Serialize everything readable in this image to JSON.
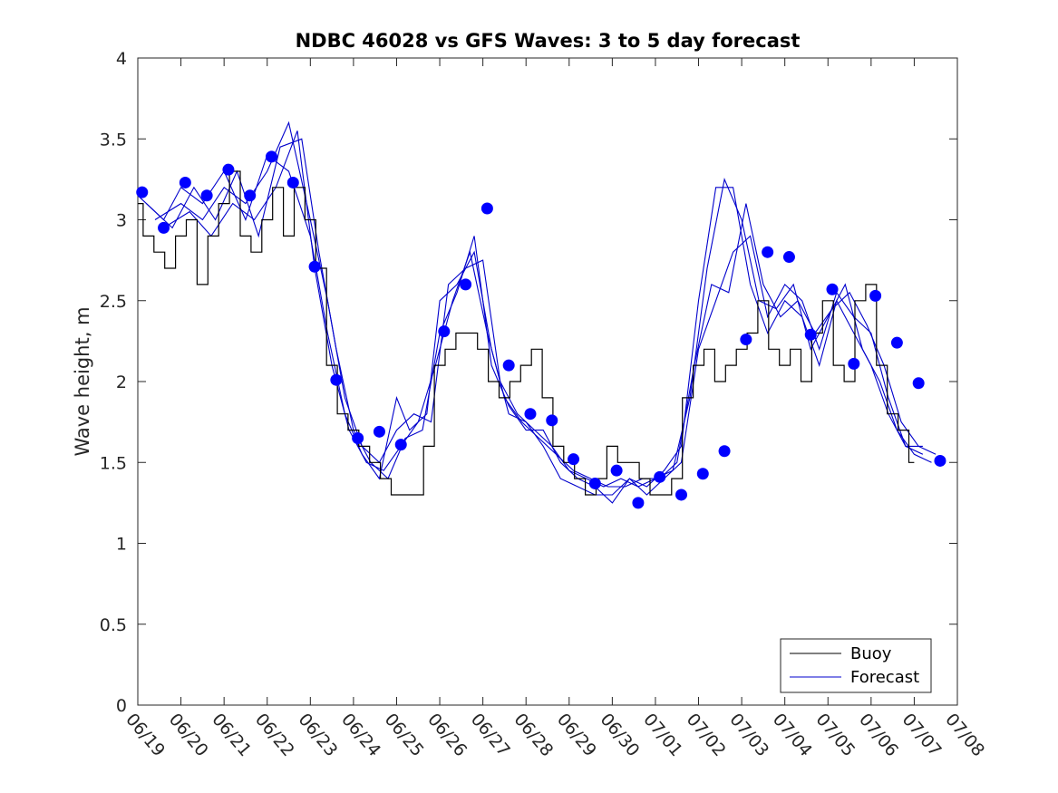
{
  "chart_data": {
    "type": "line",
    "title": "NDBC 46028 vs GFS Waves: 3 to 5 day forecast",
    "xlabel": "",
    "ylabel": "Wave height, m",
    "x_tick_labels": [
      "06/19",
      "06/20",
      "06/21",
      "06/22",
      "06/23",
      "06/24",
      "06/25",
      "06/26",
      "06/27",
      "06/28",
      "06/29",
      "06/30",
      "07/01",
      "07/02",
      "07/03",
      "07/04",
      "07/05",
      "07/06",
      "07/07",
      "07/08"
    ],
    "xlim": [
      0,
      19
    ],
    "ylim": [
      0,
      4
    ],
    "y_ticks": [
      "0",
      "0.5",
      "1",
      "1.5",
      "2",
      "2.5",
      "3",
      "3.5",
      "4"
    ],
    "grid": false,
    "legend_position": "bottom-right",
    "legend": [
      {
        "label": "Buoy",
        "color": "#000000"
      },
      {
        "label": "Forecast",
        "color": "#0000cc"
      }
    ],
    "buoy": {
      "name": "Buoy",
      "color": "#000000",
      "points": [
        [
          0,
          3.1
        ],
        [
          0.25,
          2.9
        ],
        [
          0.5,
          2.8
        ],
        [
          0.75,
          2.7
        ],
        [
          1,
          2.9
        ],
        [
          1.25,
          3.0
        ],
        [
          1.5,
          2.6
        ],
        [
          1.75,
          2.9
        ],
        [
          2,
          3.1
        ],
        [
          2.25,
          3.3
        ],
        [
          2.5,
          2.9
        ],
        [
          2.75,
          2.8
        ],
        [
          3,
          3.0
        ],
        [
          3.25,
          3.2
        ],
        [
          3.5,
          2.9
        ],
        [
          3.75,
          3.2
        ],
        [
          4,
          3.0
        ],
        [
          4.25,
          2.7
        ],
        [
          4.5,
          2.1
        ],
        [
          4.75,
          1.8
        ],
        [
          5,
          1.7
        ],
        [
          5.25,
          1.6
        ],
        [
          5.5,
          1.5
        ],
        [
          5.75,
          1.4
        ],
        [
          6,
          1.3
        ],
        [
          6.25,
          1.3
        ],
        [
          6.5,
          1.3
        ],
        [
          6.75,
          1.6
        ],
        [
          7,
          2.1
        ],
        [
          7.25,
          2.2
        ],
        [
          7.5,
          2.3
        ],
        [
          7.75,
          2.3
        ],
        [
          8,
          2.2
        ],
        [
          8.25,
          2.0
        ],
        [
          8.5,
          1.9
        ],
        [
          8.75,
          2.0
        ],
        [
          9,
          2.1
        ],
        [
          9.25,
          2.2
        ],
        [
          9.5,
          1.9
        ],
        [
          9.75,
          1.6
        ],
        [
          10,
          1.5
        ],
        [
          10.25,
          1.4
        ],
        [
          10.5,
          1.3
        ],
        [
          10.75,
          1.4
        ],
        [
          11,
          1.6
        ],
        [
          11.25,
          1.5
        ],
        [
          11.5,
          1.5
        ],
        [
          11.75,
          1.4
        ],
        [
          12,
          1.3
        ],
        [
          12.25,
          1.3
        ],
        [
          12.5,
          1.4
        ],
        [
          12.75,
          1.9
        ],
        [
          13,
          2.1
        ],
        [
          13.25,
          2.2
        ],
        [
          13.5,
          2.0
        ],
        [
          13.75,
          2.1
        ],
        [
          14,
          2.2
        ],
        [
          14.25,
          2.3
        ],
        [
          14.5,
          2.5
        ],
        [
          14.75,
          2.2
        ],
        [
          15,
          2.1
        ],
        [
          15.25,
          2.2
        ],
        [
          15.5,
          2.0
        ],
        [
          15.75,
          2.3
        ],
        [
          16,
          2.5
        ],
        [
          16.25,
          2.1
        ],
        [
          16.5,
          2.0
        ],
        [
          16.75,
          2.5
        ],
        [
          17,
          2.6
        ],
        [
          17.25,
          2.1
        ],
        [
          17.5,
          1.8
        ],
        [
          17.75,
          1.7
        ],
        [
          18,
          1.5
        ]
      ]
    },
    "forecast_lines": [
      {
        "name": "",
        "points": [
          [
            0,
            3.15
          ],
          [
            0.6,
            3.0
          ],
          [
            1.0,
            3.2
          ],
          [
            1.5,
            3.1
          ],
          [
            2.0,
            3.3
          ],
          [
            2.5,
            3.0
          ],
          [
            3.0,
            3.4
          ],
          [
            3.5,
            3.3
          ],
          [
            4.0,
            2.9
          ],
          [
            4.4,
            2.3
          ],
          [
            4.8,
            1.8
          ],
          [
            5.2,
            1.55
          ],
          [
            5.6,
            1.4
          ],
          [
            6.0,
            1.9
          ],
          [
            6.3,
            1.7
          ],
          [
            6.7,
            1.8
          ],
          [
            7.0,
            2.5
          ],
          [
            7.4,
            2.6
          ],
          [
            7.8,
            2.8
          ],
          [
            8.2,
            2.2
          ],
          [
            8.6,
            1.8
          ],
          [
            9.0,
            1.75
          ],
          [
            9.4,
            1.6
          ],
          [
            9.8,
            1.4
          ],
          [
            10.2,
            1.35
          ],
          [
            10.6,
            1.3
          ],
          [
            11.0,
            1.3
          ],
          [
            11.4,
            1.4
          ],
          [
            11.8,
            1.35
          ],
          [
            12.2,
            1.45
          ],
          [
            12.6,
            1.6
          ],
          [
            13.0,
            2.5
          ],
          [
            13.4,
            3.2
          ],
          [
            13.8,
            3.2
          ],
          [
            14.2,
            2.6
          ],
          [
            14.6,
            2.3
          ],
          [
            15.0,
            2.5
          ],
          [
            15.4,
            2.4
          ],
          [
            15.8,
            2.1
          ],
          [
            16.2,
            2.5
          ],
          [
            16.6,
            2.3
          ],
          [
            17.0,
            2.1
          ],
          [
            17.4,
            1.8
          ],
          [
            17.8,
            1.6
          ],
          [
            18.2,
            1.55
          ]
        ]
      },
      {
        "name": "",
        "points": [
          [
            0.2,
            3.1
          ],
          [
            0.8,
            2.95
          ],
          [
            1.3,
            3.2
          ],
          [
            1.8,
            3.0
          ],
          [
            2.3,
            3.3
          ],
          [
            2.8,
            2.9
          ],
          [
            3.3,
            3.45
          ],
          [
            3.8,
            3.5
          ],
          [
            4.2,
            2.8
          ],
          [
            4.6,
            2.2
          ],
          [
            5.0,
            1.7
          ],
          [
            5.4,
            1.5
          ],
          [
            5.8,
            1.4
          ],
          [
            6.2,
            1.65
          ],
          [
            6.6,
            1.7
          ],
          [
            7.0,
            2.3
          ],
          [
            7.4,
            2.55
          ],
          [
            7.8,
            2.9
          ],
          [
            8.2,
            2.1
          ],
          [
            8.6,
            1.85
          ],
          [
            9.0,
            1.7
          ],
          [
            9.4,
            1.7
          ],
          [
            9.8,
            1.5
          ],
          [
            10.2,
            1.4
          ],
          [
            10.6,
            1.35
          ],
          [
            11.0,
            1.25
          ],
          [
            11.4,
            1.4
          ],
          [
            11.8,
            1.3
          ],
          [
            12.2,
            1.4
          ],
          [
            12.6,
            1.5
          ],
          [
            13.0,
            2.2
          ],
          [
            13.4,
            2.5
          ],
          [
            13.8,
            2.8
          ],
          [
            14.2,
            2.9
          ],
          [
            14.6,
            2.4
          ],
          [
            15.0,
            2.6
          ],
          [
            15.4,
            2.5
          ],
          [
            15.8,
            2.2
          ],
          [
            16.2,
            2.55
          ],
          [
            16.6,
            2.4
          ],
          [
            17.0,
            2.3
          ],
          [
            17.4,
            1.9
          ],
          [
            17.8,
            1.6
          ],
          [
            18.2,
            1.6
          ]
        ]
      },
      {
        "name": "",
        "points": [
          [
            0.4,
            3.0
          ],
          [
            1.0,
            3.1
          ],
          [
            1.5,
            3.0
          ],
          [
            2.0,
            3.2
          ],
          [
            2.5,
            3.1
          ],
          [
            3.0,
            3.3
          ],
          [
            3.5,
            3.6
          ],
          [
            4.0,
            3.0
          ],
          [
            4.4,
            2.5
          ],
          [
            4.8,
            1.9
          ],
          [
            5.2,
            1.6
          ],
          [
            5.6,
            1.5
          ],
          [
            6.0,
            1.7
          ],
          [
            6.4,
            1.8
          ],
          [
            6.8,
            1.75
          ],
          [
            7.2,
            2.6
          ],
          [
            7.6,
            2.7
          ],
          [
            8.0,
            2.75
          ],
          [
            8.4,
            2.0
          ],
          [
            8.8,
            1.8
          ],
          [
            9.2,
            1.7
          ],
          [
            9.6,
            1.6
          ],
          [
            10.0,
            1.45
          ],
          [
            10.4,
            1.4
          ],
          [
            10.8,
            1.35
          ],
          [
            11.2,
            1.4
          ],
          [
            11.6,
            1.35
          ],
          [
            12.0,
            1.4
          ],
          [
            12.4,
            1.45
          ],
          [
            12.8,
            1.9
          ],
          [
            13.2,
            2.7
          ],
          [
            13.6,
            3.25
          ],
          [
            14.0,
            3.0
          ],
          [
            14.4,
            2.5
          ],
          [
            14.8,
            2.45
          ],
          [
            15.2,
            2.6
          ],
          [
            15.6,
            2.2
          ],
          [
            16.0,
            2.4
          ],
          [
            16.4,
            2.6
          ],
          [
            16.8,
            2.2
          ],
          [
            17.2,
            2.0
          ],
          [
            17.6,
            1.7
          ],
          [
            18.0,
            1.55
          ],
          [
            18.4,
            1.5
          ]
        ]
      },
      {
        "name": "",
        "points": [
          [
            0.6,
            2.95
          ],
          [
            1.2,
            3.05
          ],
          [
            1.7,
            2.9
          ],
          [
            2.2,
            3.1
          ],
          [
            2.7,
            3.0
          ],
          [
            3.2,
            3.2
          ],
          [
            3.7,
            3.55
          ],
          [
            4.1,
            2.7
          ],
          [
            4.5,
            2.1
          ],
          [
            4.9,
            1.7
          ],
          [
            5.3,
            1.5
          ],
          [
            5.7,
            1.45
          ],
          [
            6.1,
            1.6
          ],
          [
            6.5,
            1.75
          ],
          [
            6.9,
            2.1
          ],
          [
            7.3,
            2.5
          ],
          [
            7.7,
            2.8
          ],
          [
            8.1,
            2.3
          ],
          [
            8.5,
            1.9
          ],
          [
            8.9,
            1.75
          ],
          [
            9.3,
            1.65
          ],
          [
            9.7,
            1.55
          ],
          [
            10.1,
            1.45
          ],
          [
            10.5,
            1.4
          ],
          [
            10.9,
            1.35
          ],
          [
            11.3,
            1.35
          ],
          [
            11.7,
            1.4
          ],
          [
            12.1,
            1.4
          ],
          [
            12.5,
            1.5
          ],
          [
            12.9,
            2.1
          ],
          [
            13.3,
            2.6
          ],
          [
            13.7,
            2.55
          ],
          [
            14.1,
            3.1
          ],
          [
            14.5,
            2.6
          ],
          [
            14.9,
            2.4
          ],
          [
            15.3,
            2.5
          ],
          [
            15.7,
            2.3
          ],
          [
            16.1,
            2.45
          ],
          [
            16.5,
            2.55
          ],
          [
            16.9,
            2.35
          ],
          [
            17.3,
            2.1
          ],
          [
            17.7,
            1.75
          ],
          [
            18.1,
            1.6
          ],
          [
            18.5,
            1.55
          ]
        ]
      }
    ],
    "forecast_markers": {
      "name": "Forecast",
      "color": "#0000ff",
      "points": [
        [
          0.1,
          3.17
        ],
        [
          0.6,
          2.95
        ],
        [
          1.1,
          3.23
        ],
        [
          1.6,
          3.15
        ],
        [
          2.1,
          3.31
        ],
        [
          2.6,
          3.15
        ],
        [
          3.1,
          3.39
        ],
        [
          3.6,
          3.23
        ],
        [
          4.1,
          2.71
        ],
        [
          4.6,
          2.01
        ],
        [
          5.1,
          1.65
        ],
        [
          5.6,
          1.69
        ],
        [
          6.1,
          1.61
        ],
        [
          7.1,
          2.31
        ],
        [
          7.6,
          2.6
        ],
        [
          8.1,
          3.07
        ],
        [
          8.6,
          2.1
        ],
        [
          9.1,
          1.8
        ],
        [
          9.6,
          1.76
        ],
        [
          10.1,
          1.52
        ],
        [
          10.6,
          1.37
        ],
        [
          11.1,
          1.45
        ],
        [
          11.6,
          1.25
        ],
        [
          12.1,
          1.41
        ],
        [
          12.6,
          1.3
        ],
        [
          13.1,
          1.43
        ],
        [
          13.6,
          1.57
        ],
        [
          14.1,
          2.26
        ],
        [
          14.6,
          2.8
        ],
        [
          15.1,
          2.77
        ],
        [
          15.6,
          2.29
        ],
        [
          16.1,
          2.57
        ],
        [
          16.6,
          2.11
        ],
        [
          17.1,
          2.53
        ],
        [
          17.6,
          2.24
        ],
        [
          18.1,
          1.99
        ],
        [
          18.6,
          1.51
        ]
      ]
    }
  }
}
